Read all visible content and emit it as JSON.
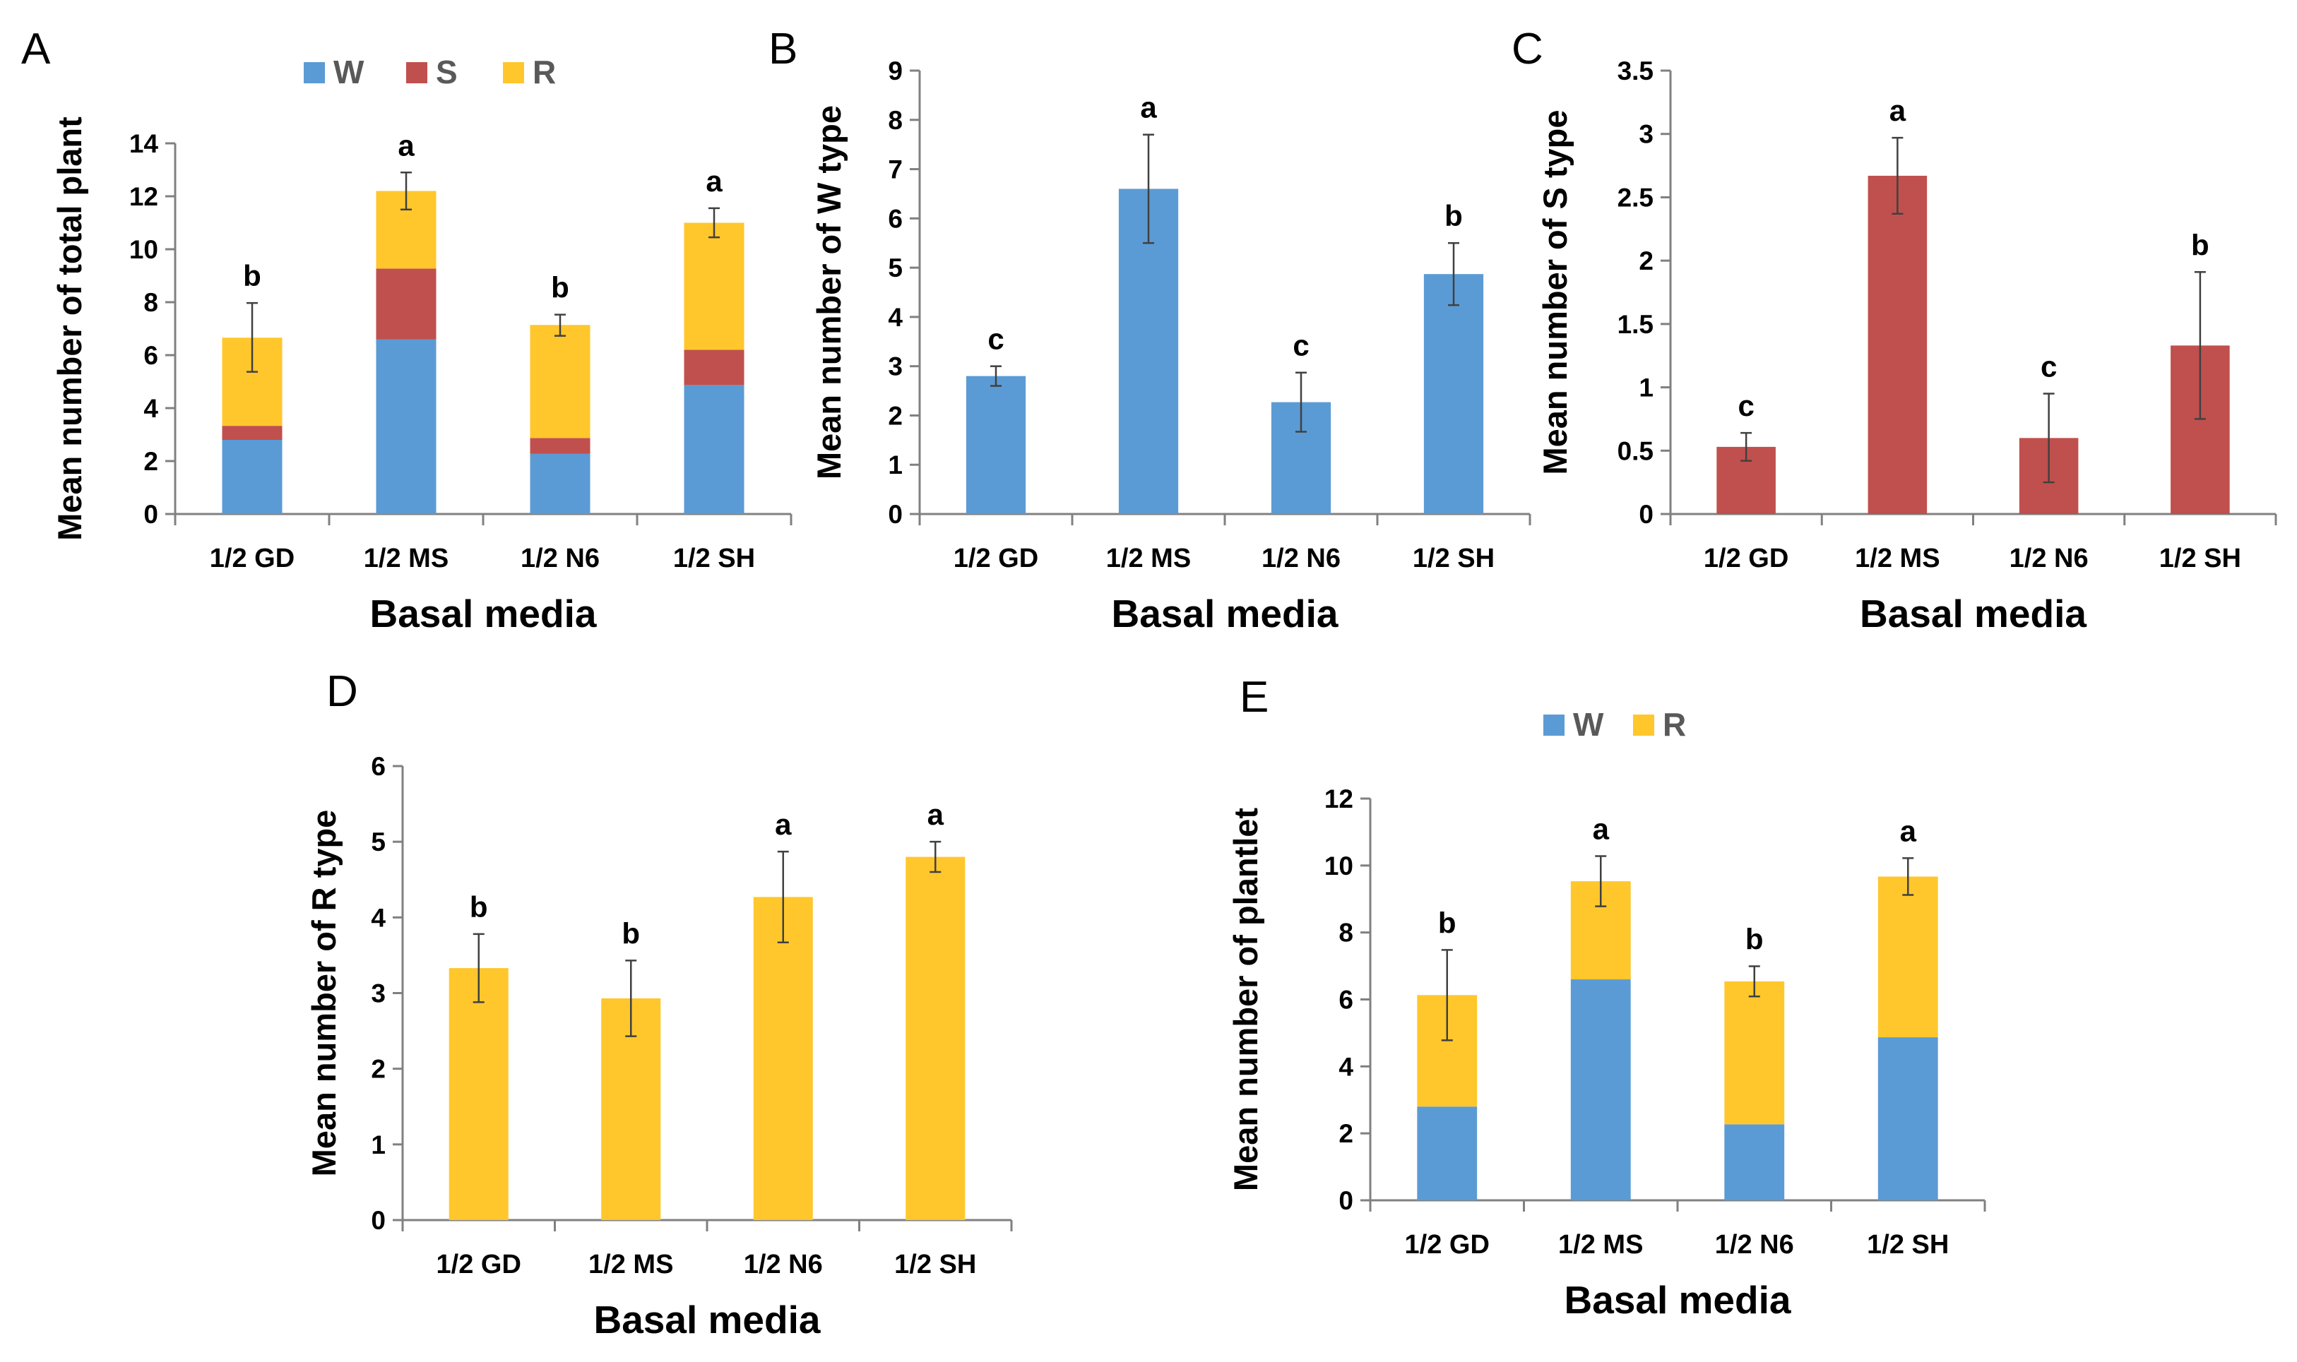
{
  "colors": {
    "W": "#5b9bd5",
    "S": "#c0504d",
    "R": "#ffc72c",
    "axis": "#808080",
    "error": "#404040"
  },
  "chart_data": [
    {
      "panel": "A",
      "type": "bar",
      "stacked": true,
      "categories": [
        "1/2 GD",
        "1/2 MS",
        "1/2 N6",
        "1/2 SH"
      ],
      "series": [
        {
          "name": "W",
          "color": "#5b9bd5",
          "values": [
            2.8,
            6.6,
            2.27,
            4.87
          ]
        },
        {
          "name": "S",
          "color": "#c0504d",
          "values": [
            0.53,
            2.67,
            0.6,
            1.33
          ]
        },
        {
          "name": "R",
          "color": "#ffc72c",
          "values": [
            3.33,
            2.93,
            4.27,
            4.8
          ]
        }
      ],
      "totals": [
        6.67,
        12.2,
        7.13,
        11.0
      ],
      "error": [
        1.3,
        0.7,
        0.4,
        0.55
      ],
      "significance": [
        "b",
        "a",
        "b",
        "a"
      ],
      "ylim": [
        0,
        14
      ],
      "yticks": [
        "0",
        "2",
        "4",
        "6",
        "8",
        "10",
        "12",
        "14"
      ],
      "xlabel": "Basal media",
      "ylabel": "Mean number of total plant",
      "legend": [
        "W",
        "S",
        "R"
      ],
      "legend_position": "top"
    },
    {
      "panel": "B",
      "type": "bar",
      "categories": [
        "1/2 GD",
        "1/2 MS",
        "1/2 N6",
        "1/2 SH"
      ],
      "series": [
        {
          "name": "W",
          "color": "#5b9bd5",
          "values": [
            2.8,
            6.6,
            2.27,
            4.87
          ]
        }
      ],
      "error": [
        0.2,
        1.1,
        0.6,
        0.63
      ],
      "significance": [
        "c",
        "a",
        "c",
        "b"
      ],
      "ylim": [
        0,
        9
      ],
      "yticks": [
        "0",
        "1",
        "2",
        "3",
        "4",
        "5",
        "6",
        "7",
        "8",
        "9"
      ],
      "xlabel": "Basal media",
      "ylabel": "Mean number of W type"
    },
    {
      "panel": "C",
      "type": "bar",
      "categories": [
        "1/2 GD",
        "1/2 MS",
        "1/2 N6",
        "1/2 SH"
      ],
      "series": [
        {
          "name": "S",
          "color": "#c0504d",
          "values": [
            0.53,
            2.67,
            0.6,
            1.33
          ]
        }
      ],
      "error": [
        0.11,
        0.3,
        0.35,
        0.58
      ],
      "significance": [
        "c",
        "a",
        "c",
        "b"
      ],
      "ylim": [
        0,
        3.5
      ],
      "yticks": [
        "0",
        "0.5",
        "1",
        "1.5",
        "2",
        "2.5",
        "3",
        "3.5"
      ],
      "xlabel": "Basal media",
      "ylabel": "Mean number of S type"
    },
    {
      "panel": "D",
      "type": "bar",
      "categories": [
        "1/2 GD",
        "1/2 MS",
        "1/2 N6",
        "1/2 SH"
      ],
      "series": [
        {
          "name": "R",
          "color": "#ffc72c",
          "values": [
            3.33,
            2.93,
            4.27,
            4.8
          ]
        }
      ],
      "error": [
        0.45,
        0.5,
        0.6,
        0.2
      ],
      "significance": [
        "b",
        "b",
        "a",
        "a"
      ],
      "ylim": [
        0,
        6
      ],
      "yticks": [
        "0",
        "1",
        "2",
        "3",
        "4",
        "5",
        "6"
      ],
      "xlabel": "Basal media",
      "ylabel": "Mean number of R type"
    },
    {
      "panel": "E",
      "type": "bar",
      "stacked": true,
      "categories": [
        "1/2 GD",
        "1/2 MS",
        "1/2 N6",
        "1/2 SH"
      ],
      "series": [
        {
          "name": "W",
          "color": "#5b9bd5",
          "values": [
            2.8,
            6.6,
            2.27,
            4.87
          ]
        },
        {
          "name": "R",
          "color": "#ffc72c",
          "values": [
            3.33,
            2.93,
            4.27,
            4.8
          ]
        }
      ],
      "totals": [
        6.13,
        9.53,
        6.54,
        9.67
      ],
      "error": [
        1.35,
        0.75,
        0.45,
        0.55
      ],
      "significance": [
        "b",
        "a",
        "b",
        "a"
      ],
      "ylim": [
        0,
        12
      ],
      "yticks": [
        "0",
        "2",
        "4",
        "6",
        "8",
        "10",
        "12"
      ],
      "xlabel": "Basal media",
      "ylabel": "Mean number of plantlet",
      "legend": [
        "W",
        "R"
      ],
      "legend_position": "top"
    }
  ]
}
